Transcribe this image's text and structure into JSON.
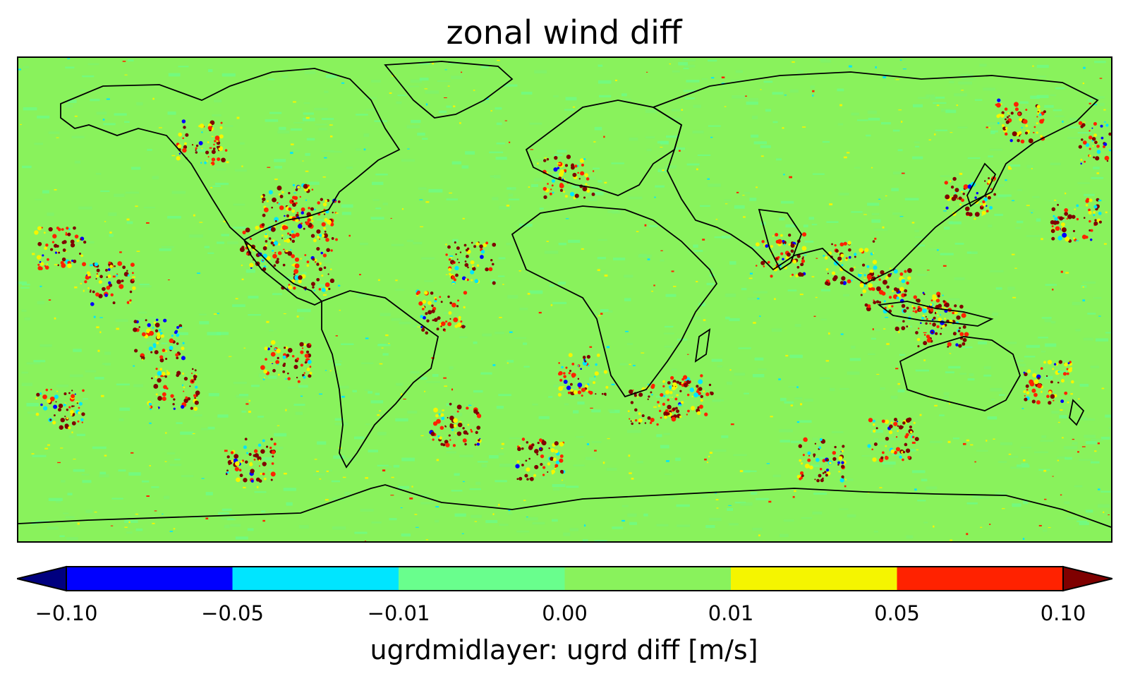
{
  "title": "zonal wind diff",
  "colorbar": {
    "label": "ugrdmidlayer: ugrd diff [m/s]",
    "ticks": [
      "−0.10",
      "−0.05",
      "−0.01",
      "0.00",
      "0.01",
      "0.05",
      "0.10"
    ],
    "bins": [
      {
        "from": -0.1,
        "to": -0.05,
        "color": "#0000ff"
      },
      {
        "from": -0.05,
        "to": -0.01,
        "color": "#00e5ff"
      },
      {
        "from": -0.01,
        "to": 0.0,
        "color": "#69fe8d"
      },
      {
        "from": 0.0,
        "to": 0.01,
        "color": "#89f25c"
      },
      {
        "from": 0.01,
        "to": 0.05,
        "color": "#f5f500"
      },
      {
        "from": 0.05,
        "to": 0.1,
        "color": "#ff2200"
      }
    ],
    "under_color": "#00007f",
    "over_color": "#7f0000",
    "extend": "both"
  },
  "map": {
    "projection": "plate-carree",
    "lon_range": [
      -180,
      180
    ],
    "lat_range": [
      -90,
      90
    ],
    "background_color": "#89f25c",
    "coastline_color": "#000000",
    "features": [
      "coastlines",
      "country-borders"
    ]
  }
}
